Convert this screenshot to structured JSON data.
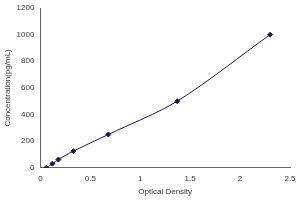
{
  "chart_data": {
    "type": "scatter",
    "x_label": "Optical Density",
    "y_label": "Concentration(pg/mL)",
    "x": [
      0.06,
      0.12,
      0.18,
      0.33,
      0.68,
      1.37,
      2.3
    ],
    "values": [
      0,
      31,
      62,
      125,
      250,
      500,
      1000
    ],
    "color": "#1a1a4e",
    "marker": "diamond",
    "line_style": "solid",
    "xlim": [
      0,
      2.5
    ],
    "xticks": [
      0,
      0.5,
      1,
      1.5,
      2,
      2.5
    ],
    "ylim": [
      0,
      1200
    ],
    "yticks": [
      0,
      200,
      400,
      600,
      800,
      1000,
      1200
    ],
    "grid": false
  }
}
